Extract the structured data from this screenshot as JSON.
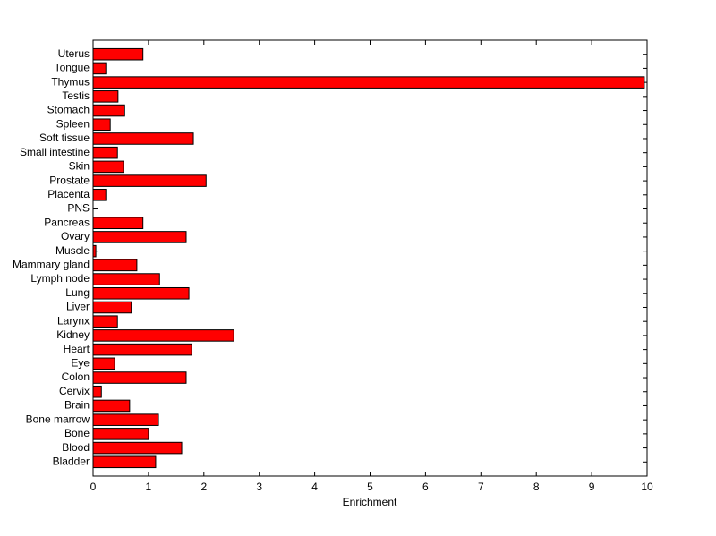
{
  "chart_data": {
    "type": "barh",
    "xlabel": "Enrichment",
    "categories": [
      "Uterus",
      "Tongue",
      "Thymus",
      "Testis",
      "Stomach",
      "Spleen",
      "Soft tissue",
      "Small intestine",
      "Skin",
      "Prostate",
      "Placenta",
      "PNS",
      "Pancreas",
      "Ovary",
      "Muscle",
      "Mammary gland",
      "Lymph node",
      "Lung",
      "Liver",
      "Larynx",
      "Kidney",
      "Heart",
      "Eye",
      "Colon",
      "Cervix",
      "Brain",
      "Bone marrow",
      "Bone",
      "Blood",
      "Bladder"
    ],
    "values": [
      0.9,
      0.23,
      9.95,
      0.45,
      0.57,
      0.31,
      1.81,
      0.44,
      0.55,
      2.04,
      0.23,
      0,
      0.9,
      1.68,
      0.05,
      0.79,
      1.2,
      1.73,
      0.69,
      0.44,
      2.54,
      1.78,
      0.39,
      1.68,
      0.15,
      0.66,
      1.18,
      1.0,
      1.6,
      1.13
    ],
    "color": "#ff0000",
    "xlim": [
      0,
      10
    ],
    "xticks": [
      0,
      1,
      2,
      3,
      4,
      5,
      6,
      7,
      8,
      9,
      10
    ]
  }
}
